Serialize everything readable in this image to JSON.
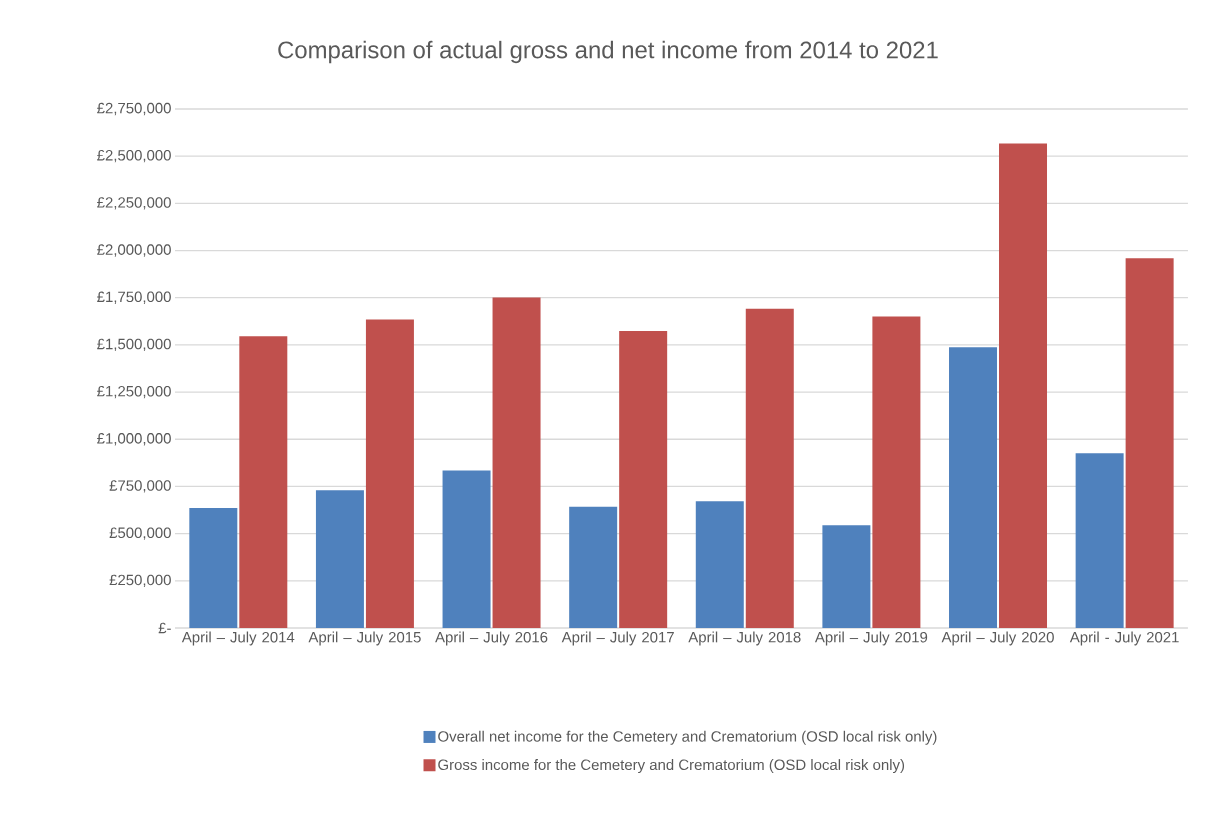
{
  "chart_data": {
    "type": "bar",
    "title": "Comparison of actual gross and net income from 2014 to 2021",
    "categories": [
      "April – July 2014",
      "April – July 2015",
      "April – July 2016",
      "April – July 2017",
      "April – July 2018",
      "April – July 2019",
      "April – July 2020",
      "April - July 2021"
    ],
    "series": [
      {
        "name": "Overall net income for the Cemetery and Crematorium (OSD local risk only)",
        "color": "#4f81bd",
        "values": [
          636000,
          730000,
          835000,
          643000,
          672000,
          545000,
          1488000,
          926000
        ]
      },
      {
        "name": "Gross income for the Cemetery and Crematorium (OSD local risk only)",
        "color": "#c0504d",
        "values": [
          1546000,
          1634000,
          1751000,
          1574000,
          1692000,
          1651000,
          2567000,
          1959000
        ]
      }
    ],
    "ylim": [
      0,
      2750000
    ],
    "yticks": [
      {
        "value": 0,
        "label": "£-"
      },
      {
        "value": 250000,
        "label": "£250,000"
      },
      {
        "value": 500000,
        "label": "£500,000"
      },
      {
        "value": 750000,
        "label": "£750,000"
      },
      {
        "value": 1000000,
        "label": "£1,000,000"
      },
      {
        "value": 1250000,
        "label": "£1,250,000"
      },
      {
        "value": 1500000,
        "label": "£1,500,000"
      },
      {
        "value": 1750000,
        "label": "£1,750,000"
      },
      {
        "value": 2000000,
        "label": "£2,000,000"
      },
      {
        "value": 2250000,
        "label": "£2,250,000"
      },
      {
        "value": 2500000,
        "label": "£2,500,000"
      },
      {
        "value": 2750000,
        "label": "£2,750,000"
      }
    ],
    "grid": "y",
    "legend": "bottom"
  }
}
